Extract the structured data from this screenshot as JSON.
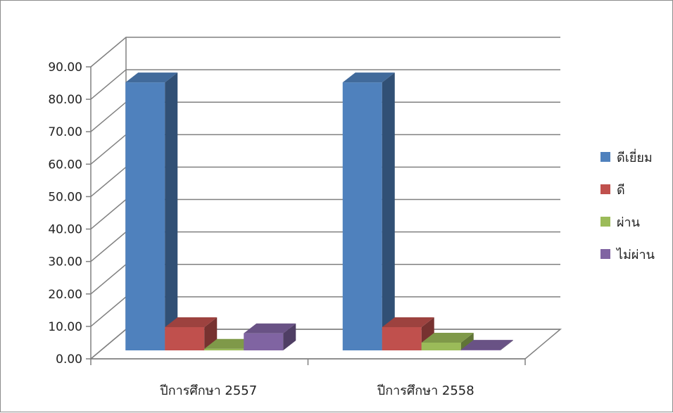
{
  "chart_data": {
    "type": "bar",
    "style": "3d-clustered-column",
    "categories": [
      "ปีการศึกษา 2557",
      "ปีการศึกษา 2558"
    ],
    "series": [
      {
        "name": "ดีเยี่ยม",
        "color": "#4f81bd",
        "values": [
          86.5,
          86.5
        ]
      },
      {
        "name": "ดี",
        "color": "#c0504d",
        "values": [
          7.5,
          7.5
        ]
      },
      {
        "name": "ผ่าน",
        "color": "#9bbb59",
        "values": [
          0.5,
          2.5
        ]
      },
      {
        "name": "ไม่ผ่าน",
        "color": "#8064a2",
        "values": [
          5.5,
          0.2
        ]
      }
    ],
    "yticks": [
      "0.00",
      "10.00",
      "20.00",
      "30.00",
      "40.00",
      "50.00",
      "60.00",
      "70.00",
      "80.00",
      "90.00"
    ],
    "ylim": [
      0,
      90
    ],
    "grid": true,
    "legend_position": "right",
    "title": "",
    "xlabel": "",
    "ylabel": ""
  }
}
